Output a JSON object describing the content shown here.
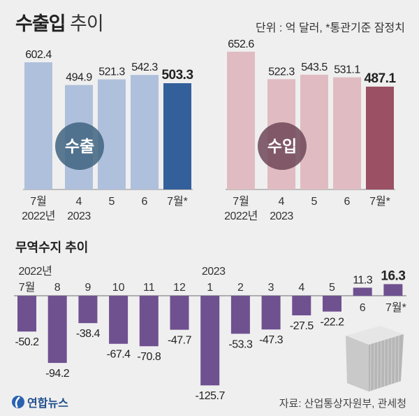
{
  "header": {
    "title_bold": "수출입",
    "title_light": "추이",
    "unit_note": "단위 : 억 달러, *통관기준 잠정치"
  },
  "colors": {
    "background": "#efefef",
    "export_bar": "#afc0dc",
    "export_highlight": "#33609a",
    "export_circle": "#3f6480",
    "import_bar": "#e0bcc2",
    "import_highlight": "#9b5063",
    "import_circle": "#6e4658",
    "balance_bar": "#6f5190"
  },
  "chart_data": [
    {
      "type": "bar",
      "title": "수출",
      "categories": [
        "7월",
        "4",
        "5",
        "6",
        "7월*"
      ],
      "category_sublabels": [
        "2022년",
        "2023",
        "",
        "",
        ""
      ],
      "values": [
        602.4,
        494.9,
        521.3,
        542.3,
        503.3
      ],
      "highlight_index": 4,
      "ylim": [
        0,
        660
      ],
      "grid": false
    },
    {
      "type": "bar",
      "title": "수입",
      "categories": [
        "7월",
        "4",
        "5",
        "6",
        "7월*"
      ],
      "category_sublabels": [
        "2022년",
        "2023",
        "",
        "",
        ""
      ],
      "values": [
        652.6,
        522.3,
        543.5,
        531.1,
        487.1
      ],
      "highlight_index": 4,
      "ylim": [
        0,
        660
      ],
      "grid": false
    },
    {
      "type": "bar",
      "title": "무역수지 추이",
      "categories": [
        "7월",
        "8",
        "9",
        "10",
        "11",
        "12",
        "1",
        "2",
        "3",
        "4",
        "5",
        "6",
        "7월*"
      ],
      "year_labels": [
        {
          "index": 0,
          "label": "2022년"
        },
        {
          "index": 6,
          "label": "2023"
        }
      ],
      "values": [
        -50.2,
        -94.2,
        -38.4,
        -67.4,
        -70.8,
        -47.7,
        -125.7,
        -53.3,
        -47.3,
        -27.5,
        -22.2,
        11.3,
        16.3
      ],
      "highlight_index": 12,
      "ylim": [
        -130,
        20
      ],
      "grid": false
    }
  ],
  "footer": {
    "logo": "연합뉴스",
    "source": "자료: 산업통상자원부, 관세청"
  }
}
